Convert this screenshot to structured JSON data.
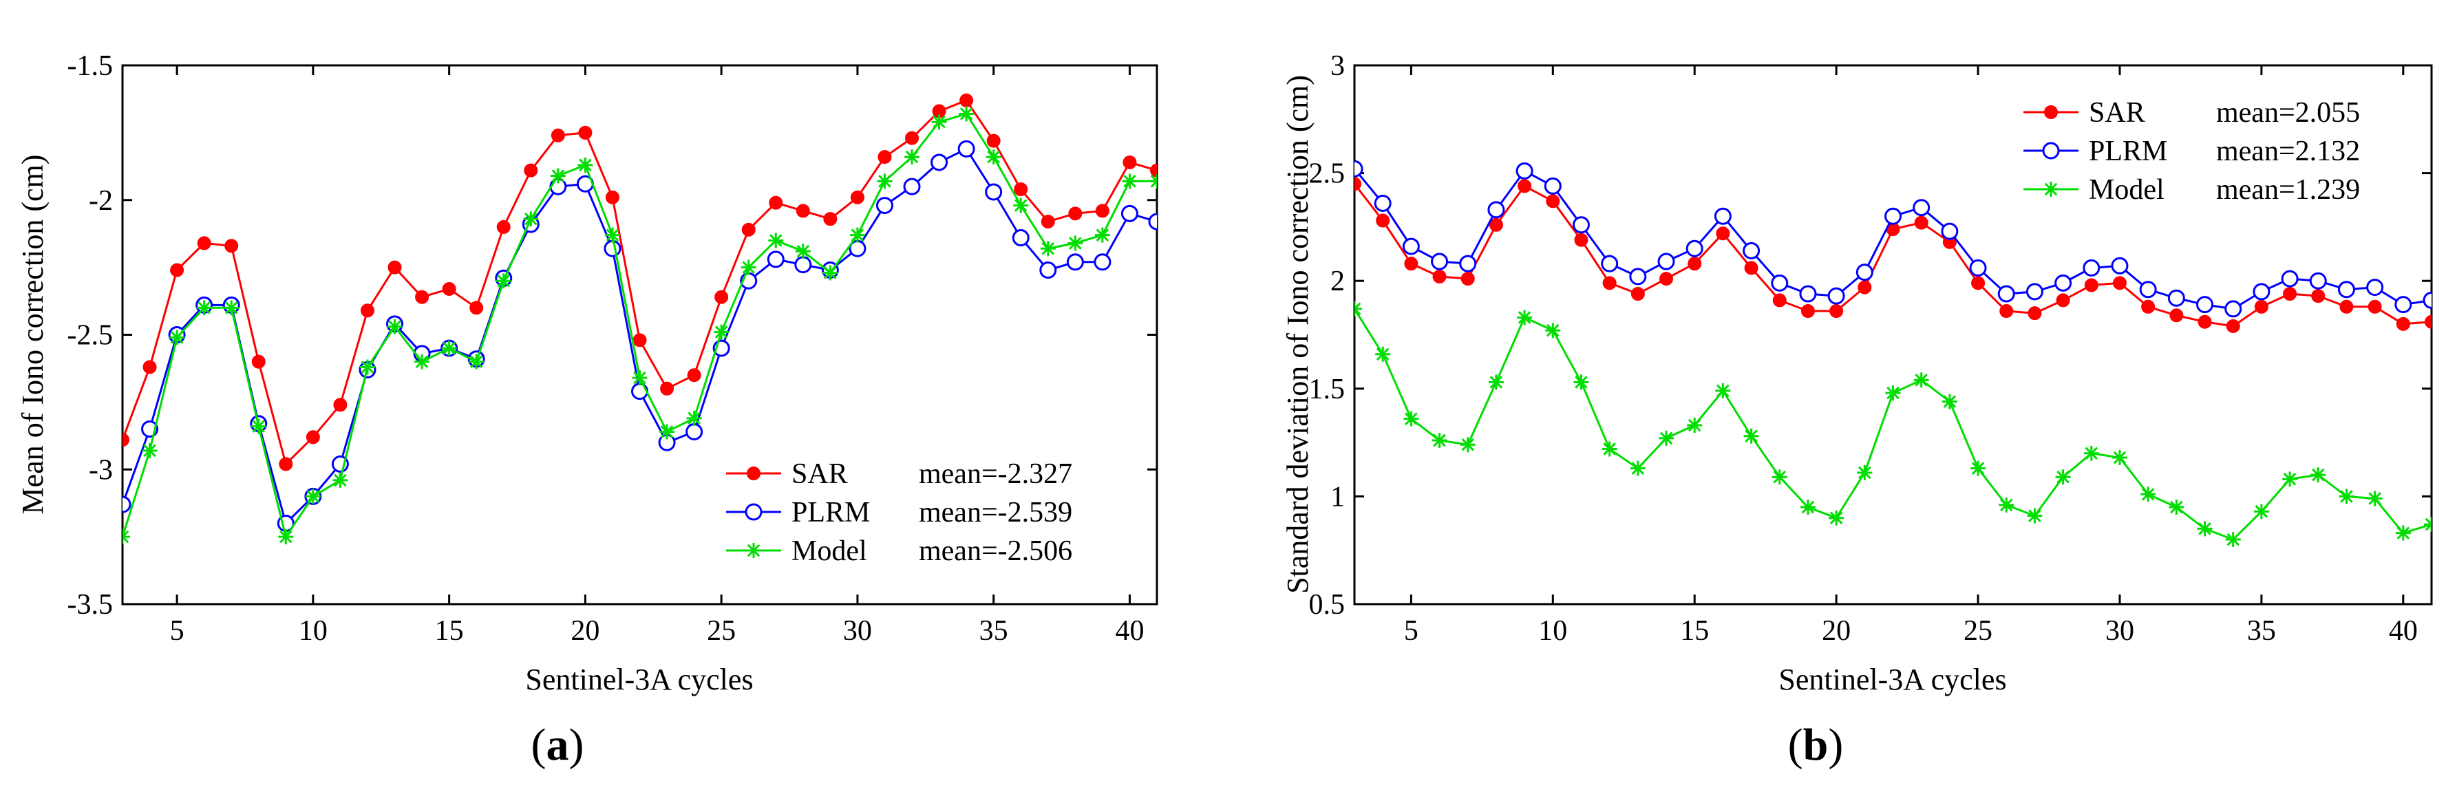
{
  "chart_data": [
    {
      "type": "line",
      "panel_label": "(a)",
      "panel_letter": "a",
      "xlabel": "Sentinel-3A cycles",
      "ylabel": "Mean of Iono correction (cm)",
      "xlim": [
        3,
        41
      ],
      "ylim": [
        -3.5,
        -1.5
      ],
      "xticks": [
        5,
        10,
        15,
        20,
        25,
        30,
        35,
        40
      ],
      "xtick_labels": [
        "5",
        "10",
        "15",
        "20",
        "25",
        "30",
        "35",
        "40"
      ],
      "yticks": [
        -3.5,
        -3,
        -2.5,
        -2,
        -1.5
      ],
      "ytick_labels": [
        "-3.5",
        "-3",
        "-2.5",
        "-2",
        "-1.5"
      ],
      "grid": false,
      "legend_position": "bottom-right",
      "x": [
        3,
        4,
        5,
        6,
        7,
        8,
        9,
        10,
        11,
        12,
        13,
        14,
        15,
        16,
        17,
        18,
        19,
        20,
        21,
        22,
        23,
        24,
        25,
        26,
        27,
        28,
        29,
        30,
        31,
        32,
        33,
        34,
        35,
        36,
        37,
        38,
        39,
        40,
        41
      ],
      "series": [
        {
          "name": "SAR",
          "legend_stat": "mean=-2.327",
          "color": "#ff0000",
          "marker": "dot",
          "values": [
            -2.89,
            -2.62,
            -2.26,
            -2.16,
            -2.17,
            -2.6,
            -2.98,
            -2.88,
            -2.76,
            -2.41,
            -2.25,
            -2.36,
            -2.33,
            -2.4,
            -2.1,
            -1.89,
            -1.76,
            -1.75,
            -1.99,
            -2.52,
            -2.7,
            -2.65,
            -2.36,
            -2.11,
            -2.01,
            -2.04,
            -2.07,
            -1.99,
            -1.84,
            -1.77,
            -1.67,
            -1.63,
            -1.78,
            -1.96,
            -2.08,
            -2.05,
            -2.04,
            -1.86,
            -1.89
          ]
        },
        {
          "name": "PLRM",
          "legend_stat": "mean=-2.539",
          "color": "#0000ff",
          "marker": "circle",
          "values": [
            -3.13,
            -2.85,
            -2.5,
            -2.39,
            -2.39,
            -2.83,
            -3.2,
            -3.1,
            -2.98,
            -2.63,
            -2.46,
            -2.57,
            -2.55,
            -2.59,
            -2.29,
            -2.09,
            -1.95,
            -1.94,
            -2.18,
            -2.71,
            -2.9,
            -2.86,
            -2.55,
            -2.3,
            -2.22,
            -2.24,
            -2.26,
            -2.18,
            -2.02,
            -1.95,
            -1.86,
            -1.81,
            -1.97,
            -2.14,
            -2.26,
            -2.23,
            -2.23,
            -2.05,
            -2.08
          ]
        },
        {
          "name": "Model",
          "legend_stat": "mean=-2.506",
          "color": "#00dd00",
          "marker": "star",
          "values": [
            -3.25,
            -2.93,
            -2.51,
            -2.4,
            -2.4,
            -2.84,
            -3.25,
            -3.1,
            -3.04,
            -2.62,
            -2.47,
            -2.6,
            -2.55,
            -2.6,
            -2.3,
            -2.07,
            -1.91,
            -1.87,
            -2.13,
            -2.66,
            -2.86,
            -2.81,
            -2.49,
            -2.25,
            -2.15,
            -2.19,
            -2.27,
            -2.13,
            -1.93,
            -1.84,
            -1.71,
            -1.68,
            -1.84,
            -2.02,
            -2.18,
            -2.16,
            -2.13,
            -1.93,
            -1.93
          ]
        }
      ]
    },
    {
      "type": "line",
      "panel_label": "(b)",
      "panel_letter": "b",
      "xlabel": "Sentinel-3A cycles",
      "ylabel": "Standard deviation of Iono correction (cm)",
      "xlim": [
        3,
        41
      ],
      "ylim": [
        0.5,
        3
      ],
      "xticks": [
        5,
        10,
        15,
        20,
        25,
        30,
        35,
        40
      ],
      "xtick_labels": [
        "5",
        "10",
        "15",
        "20",
        "25",
        "30",
        "35",
        "40"
      ],
      "yticks": [
        0.5,
        1,
        1.5,
        2,
        2.5,
        3
      ],
      "ytick_labels": [
        "0.5",
        "1",
        "1.5",
        "2",
        "2.5",
        "3"
      ],
      "grid": false,
      "legend_position": "top-right",
      "x": [
        3,
        4,
        5,
        6,
        7,
        8,
        9,
        10,
        11,
        12,
        13,
        14,
        15,
        16,
        17,
        18,
        19,
        20,
        21,
        22,
        23,
        24,
        25,
        26,
        27,
        28,
        29,
        30,
        31,
        32,
        33,
        34,
        35,
        36,
        37,
        38,
        39,
        40,
        41
      ],
      "series": [
        {
          "name": "SAR",
          "legend_stat": "mean=2.055",
          "color": "#ff0000",
          "marker": "dot",
          "values": [
            2.45,
            2.28,
            2.08,
            2.02,
            2.01,
            2.26,
            2.44,
            2.37,
            2.19,
            1.99,
            1.94,
            2.01,
            2.08,
            2.22,
            2.06,
            1.91,
            1.86,
            1.86,
            1.97,
            2.24,
            2.27,
            2.18,
            1.99,
            1.86,
            1.85,
            1.91,
            1.98,
            1.99,
            1.88,
            1.84,
            1.81,
            1.79,
            1.88,
            1.94,
            1.93,
            1.88,
            1.88,
            1.8,
            1.81
          ]
        },
        {
          "name": "PLRM",
          "legend_stat": "mean=2.132",
          "color": "#0000ff",
          "marker": "circle",
          "values": [
            2.52,
            2.36,
            2.16,
            2.09,
            2.08,
            2.33,
            2.51,
            2.44,
            2.26,
            2.08,
            2.02,
            2.09,
            2.15,
            2.3,
            2.14,
            1.99,
            1.94,
            1.93,
            2.04,
            2.3,
            2.34,
            2.23,
            2.06,
            1.94,
            1.95,
            1.99,
            2.06,
            2.07,
            1.96,
            1.92,
            1.89,
            1.87,
            1.95,
            2.01,
            2.0,
            1.96,
            1.97,
            1.89,
            1.91
          ]
        },
        {
          "name": "Model",
          "legend_stat": "mean=1.239",
          "color": "#00dd00",
          "marker": "star",
          "values": [
            1.87,
            1.66,
            1.36,
            1.26,
            1.24,
            1.53,
            1.83,
            1.77,
            1.53,
            1.22,
            1.13,
            1.27,
            1.33,
            1.49,
            1.28,
            1.09,
            0.95,
            0.9,
            1.11,
            1.48,
            1.54,
            1.44,
            1.13,
            0.96,
            0.91,
            1.09,
            1.2,
            1.18,
            1.01,
            0.95,
            0.85,
            0.8,
            0.93,
            1.08,
            1.1,
            1.0,
            0.99,
            0.83,
            0.87
          ]
        }
      ]
    }
  ]
}
